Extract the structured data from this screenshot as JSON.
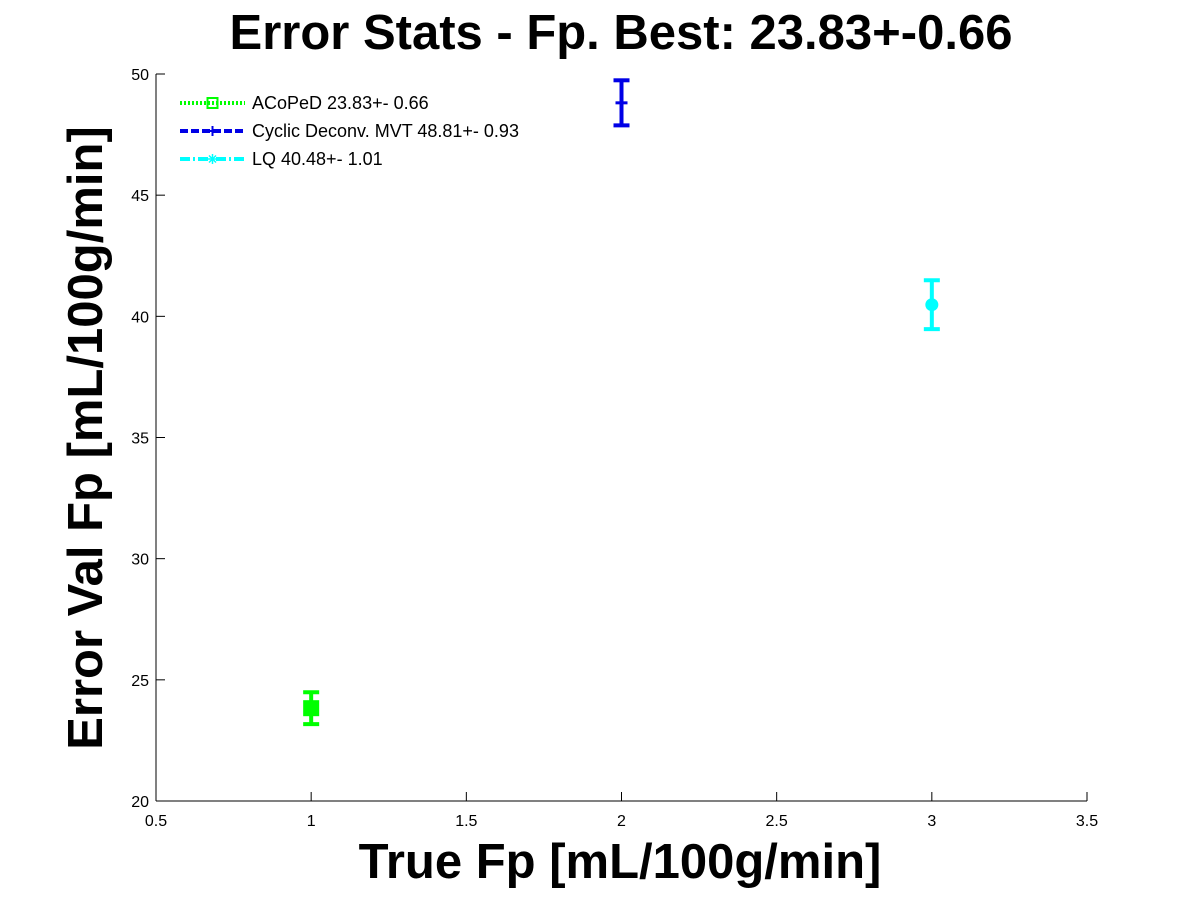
{
  "chart_data": {
    "type": "scatter",
    "title": "Error Stats - Fp. Best: 23.83+-0.66",
    "xlabel": "True Fp [mL/100g/min]",
    "ylabel": "Error Val Fp [mL/100g/min]",
    "xlim": [
      0.5,
      3.5
    ],
    "ylim": [
      20,
      50
    ],
    "xticks": [
      0.5,
      1,
      1.5,
      2,
      2.5,
      3,
      3.5
    ],
    "xtick_labels": [
      "0.5",
      "1",
      "1.5",
      "2",
      "2.5",
      "3",
      "3.5"
    ],
    "yticks": [
      20,
      25,
      30,
      35,
      40,
      45,
      50
    ],
    "ytick_labels": [
      "20",
      "25",
      "30",
      "35",
      "40",
      "45",
      "50"
    ],
    "grid": false,
    "legend_position": "top-left",
    "series": [
      {
        "name": "ACoPeD 23.83+- 0.66",
        "color": "#00ff00",
        "marker": "square",
        "line_style": "dotted",
        "x": [
          1
        ],
        "y": [
          23.83
        ],
        "error": [
          0.66
        ]
      },
      {
        "name": "Cyclic Deconv. MVT 48.81+- 0.93",
        "color": "#0000e6",
        "marker": "plus",
        "line_style": "dashed",
        "x": [
          2
        ],
        "y": [
          48.81
        ],
        "error": [
          0.93
        ]
      },
      {
        "name": "LQ 40.48+- 1.01",
        "color": "#00ffff",
        "marker": "star",
        "line_style": "dash-dot",
        "x": [
          3
        ],
        "y": [
          40.48
        ],
        "error": [
          1.01
        ]
      }
    ]
  }
}
